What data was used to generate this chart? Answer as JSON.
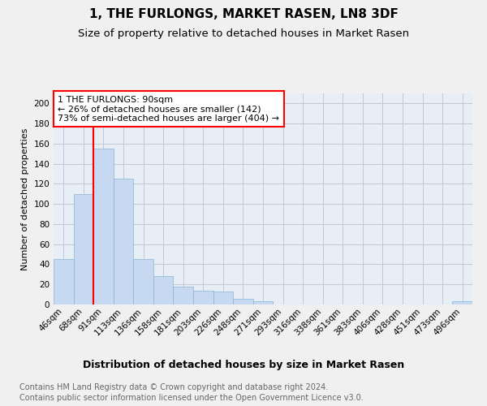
{
  "title": "1, THE FURLONGS, MARKET RASEN, LN8 3DF",
  "subtitle": "Size of property relative to detached houses in Market Rasen",
  "xlabel": "Distribution of detached houses by size in Market Rasen",
  "ylabel": "Number of detached properties",
  "footnote1": "Contains HM Land Registry data © Crown copyright and database right 2024.",
  "footnote2": "Contains public sector information licensed under the Open Government Licence v3.0.",
  "categories": [
    "46sqm",
    "68sqm",
    "91sqm",
    "113sqm",
    "136sqm",
    "158sqm",
    "181sqm",
    "203sqm",
    "226sqm",
    "248sqm",
    "271sqm",
    "293sqm",
    "316sqm",
    "338sqm",
    "361sqm",
    "383sqm",
    "406sqm",
    "428sqm",
    "451sqm",
    "473sqm",
    "496sqm"
  ],
  "values": [
    45,
    110,
    155,
    125,
    45,
    28,
    18,
    14,
    13,
    6,
    3,
    0,
    0,
    0,
    0,
    0,
    0,
    0,
    0,
    0,
    3
  ],
  "bar_color": "#c6d9f0",
  "bar_edge_color": "#8ab4d4",
  "annotation_text": "1 THE FURLONGS: 90sqm\n← 26% of detached houses are smaller (142)\n73% of semi-detached houses are larger (404) →",
  "annotation_box_color": "white",
  "annotation_box_edge_color": "red",
  "marker_color": "red",
  "ylim": [
    0,
    210
  ],
  "yticks": [
    0,
    20,
    40,
    60,
    80,
    100,
    120,
    140,
    160,
    180,
    200
  ],
  "background_color": "#f0f0f0",
  "plot_background_color": "#e8eef5",
  "grid_color": "#c0c8d8",
  "title_fontsize": 11,
  "subtitle_fontsize": 9.5,
  "xlabel_fontsize": 9,
  "ylabel_fontsize": 8,
  "tick_fontsize": 7.5,
  "annotation_fontsize": 8,
  "footnote_fontsize": 7
}
